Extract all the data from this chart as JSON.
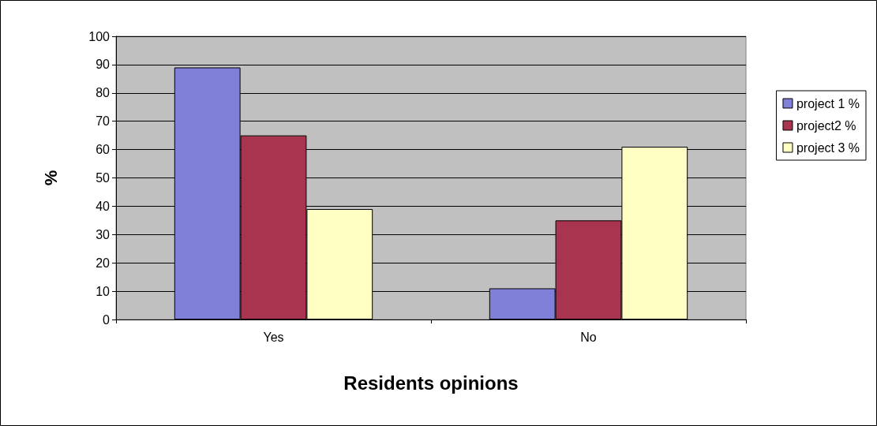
{
  "chart_data": {
    "type": "bar",
    "xlabel": "Residents opinions",
    "ylabel": "%",
    "categories": [
      "Yes",
      "No"
    ],
    "series": [
      {
        "name": "project 1 %",
        "color": "#7f80d8",
        "values": [
          89,
          11
        ]
      },
      {
        "name": "project2 %",
        "color": "#a8344f",
        "values": [
          65,
          35
        ]
      },
      {
        "name": "project 3 %",
        "color": "#ffffc4",
        "values": [
          39,
          61
        ]
      }
    ],
    "ylim": [
      0,
      100
    ],
    "yticks": [
      0,
      10,
      20,
      30,
      40,
      50,
      60,
      70,
      80,
      90,
      100
    ],
    "grid": "y",
    "legend": "right"
  }
}
